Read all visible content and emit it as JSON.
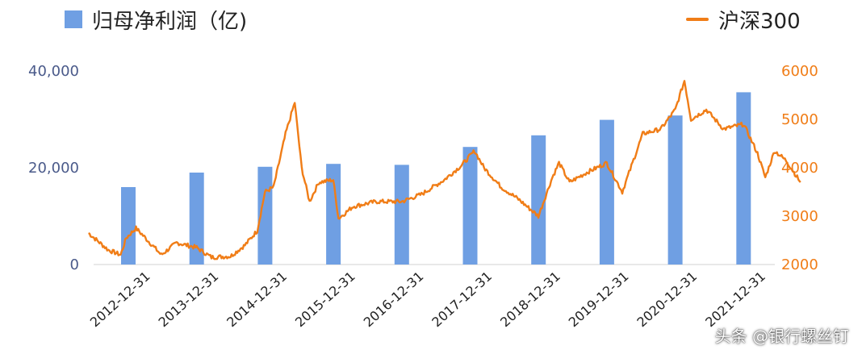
{
  "chart_data": {
    "type": "bar+line",
    "title": "",
    "categories": [
      "2012-12-31",
      "2013-12-31",
      "2014-12-31",
      "2015-12-31",
      "2016-12-31",
      "2017-12-31",
      "2018-12-31",
      "2019-12-31",
      "2020-12-31",
      "2021-12-31"
    ],
    "series": [
      {
        "name": "归母净利润（亿)",
        "type": "bar",
        "axis": "left",
        "color": "#6f9fe3",
        "values": [
          16000,
          19000,
          20200,
          20800,
          20600,
          24300,
          26700,
          29900,
          30800,
          35600
        ]
      },
      {
        "name": "沪深300",
        "type": "line",
        "axis": "right",
        "color": "#f07d17",
        "points": [
          [
            "2012-06-01",
            2650
          ],
          [
            "2012-09-15",
            2300
          ],
          [
            "2012-11-20",
            2200
          ],
          [
            "2012-12-20",
            2550
          ],
          [
            "2013-02-10",
            2750
          ],
          [
            "2013-04-01",
            2550
          ],
          [
            "2013-06-25",
            2200
          ],
          [
            "2013-09-15",
            2450
          ],
          [
            "2013-12-31",
            2350
          ],
          [
            "2014-03-20",
            2150
          ],
          [
            "2014-06-30",
            2170
          ],
          [
            "2014-09-15",
            2400
          ],
          [
            "2014-11-20",
            2700
          ],
          [
            "2014-12-31",
            3500
          ],
          [
            "2015-02-15",
            3600
          ],
          [
            "2015-04-20",
            4700
          ],
          [
            "2015-06-08",
            5350
          ],
          [
            "2015-07-15",
            4000
          ],
          [
            "2015-08-26",
            3300
          ],
          [
            "2015-10-15",
            3700
          ],
          [
            "2015-12-31",
            3750
          ],
          [
            "2016-01-28",
            2950
          ],
          [
            "2016-04-15",
            3200
          ],
          [
            "2016-08-15",
            3300
          ],
          [
            "2016-12-31",
            3300
          ],
          [
            "2017-04-15",
            3450
          ],
          [
            "2017-08-15",
            3750
          ],
          [
            "2017-11-15",
            4050
          ],
          [
            "2018-01-24",
            4350
          ],
          [
            "2018-03-15",
            4000
          ],
          [
            "2018-06-15",
            3600
          ],
          [
            "2018-09-15",
            3350
          ],
          [
            "2018-12-31",
            3000
          ],
          [
            "2019-03-15",
            3800
          ],
          [
            "2019-04-20",
            4100
          ],
          [
            "2019-06-15",
            3700
          ],
          [
            "2019-09-15",
            3900
          ],
          [
            "2019-12-31",
            4100
          ],
          [
            "2020-03-23",
            3500
          ],
          [
            "2020-07-10",
            4700
          ],
          [
            "2020-10-15",
            4800
          ],
          [
            "2020-12-31",
            5200
          ],
          [
            "2021-02-18",
            5800
          ],
          [
            "2021-03-25",
            5000
          ],
          [
            "2021-06-15",
            5200
          ],
          [
            "2021-09-15",
            4800
          ],
          [
            "2021-12-31",
            4900
          ],
          [
            "2022-03-15",
            4300
          ],
          [
            "2022-04-26",
            3800
          ],
          [
            "2022-06-15",
            4350
          ],
          [
            "2022-08-15",
            4150
          ],
          [
            "2022-10-31",
            3700
          ]
        ]
      }
    ],
    "left_axis": {
      "ticks": [
        "0",
        "20,000",
        "40,000"
      ],
      "tick_values": [
        0,
        20000,
        40000
      ],
      "ylim": [
        0,
        40000
      ]
    },
    "right_axis": {
      "ticks": [
        "2000",
        "3000",
        "4000",
        "5000",
        "6000"
      ],
      "tick_values": [
        2000,
        3000,
        4000,
        5000,
        6000
      ],
      "ylim": [
        2000,
        6000
      ]
    },
    "grid": false,
    "legend_placement": "top"
  },
  "legend": {
    "bar_label": "归母净利润（亿)",
    "line_label": "沪深300"
  },
  "watermark": "头条 @银行螺丝钉",
  "colors": {
    "bar": "#6f9fe3",
    "line": "#f07d17",
    "left_axis_text": "#4a5a8a",
    "right_axis_text": "#f07d17"
  }
}
